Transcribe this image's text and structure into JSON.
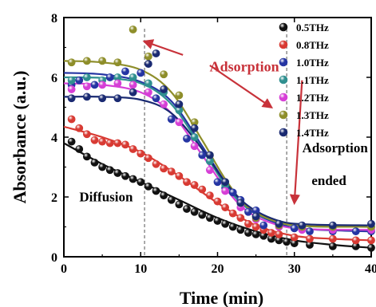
{
  "chart_data": {
    "type": "scatter",
    "title": "",
    "xlabel": "Time (min)",
    "ylabel": "Absorbance (a.u.)",
    "xlim": [
      0,
      40
    ],
    "ylim": [
      0,
      8
    ],
    "xticks": [
      0,
      10,
      20,
      30,
      40
    ],
    "yticks": [
      0,
      2,
      4,
      6,
      8
    ],
    "grid": false,
    "legend_position": "top-right",
    "fit_lines": true,
    "markers": [
      {
        "x": 10.5,
        "style": "dashed"
      },
      {
        "x": 29,
        "style": "dashed"
      }
    ],
    "annotations": [
      {
        "text": "Diffusion",
        "x": 5.5,
        "y": 1.85,
        "color": "#000000"
      },
      {
        "text": "Adsorption",
        "x": 23.5,
        "y": 6.2,
        "color": "#c8323a"
      },
      {
        "text": "Adsorption",
        "x": 35.3,
        "y": 3.5,
        "color": "#000000"
      },
      {
        "text": "ended",
        "x": 34.5,
        "y": 2.4,
        "color": "#000000"
      }
    ],
    "arrows": [
      {
        "from": [
          15.5,
          6.75
        ],
        "to": [
          10.5,
          7.2
        ],
        "color": "#c8323a"
      },
      {
        "from": [
          19,
          6.4
        ],
        "to": [
          27,
          5.0
        ],
        "color": "#c8323a"
      },
      {
        "from": [
          31,
          5.9
        ],
        "to": [
          30,
          1.8
        ],
        "color": "#c8323a"
      }
    ],
    "series": [
      {
        "name": "0.5THz",
        "color": "#111111",
        "x": [
          1,
          2,
          3,
          4,
          5,
          6,
          7,
          8,
          9,
          10,
          11,
          12,
          13,
          14,
          15,
          16,
          17,
          18,
          19,
          20,
          21,
          22,
          23,
          24,
          25,
          26,
          27,
          28,
          29,
          30,
          32,
          35,
          38,
          40
        ],
        "y": [
          3.85,
          3.6,
          3.35,
          3.15,
          3.0,
          2.9,
          2.8,
          2.7,
          2.6,
          2.5,
          2.35,
          2.2,
          2.05,
          1.9,
          1.75,
          1.6,
          1.5,
          1.4,
          1.3,
          1.2,
          1.1,
          1.0,
          0.9,
          0.8,
          0.75,
          0.7,
          0.6,
          0.55,
          0.5,
          0.45,
          0.4,
          0.35,
          0.35,
          0.3
        ],
        "fit": [
          [
            0,
            3.8
          ],
          [
            5,
            3.1
          ],
          [
            10,
            2.5
          ],
          [
            15,
            1.9
          ],
          [
            20,
            1.3
          ],
          [
            25,
            0.85
          ],
          [
            30,
            0.55
          ],
          [
            35,
            0.4
          ],
          [
            40,
            0.3
          ]
        ]
      },
      {
        "name": "0.8THz",
        "color": "#d83a33",
        "x": [
          1,
          2,
          3,
          4,
          5,
          6,
          7,
          8,
          9,
          10,
          11,
          12,
          13,
          14,
          15,
          16,
          17,
          18,
          19,
          20,
          21,
          22,
          23,
          24,
          25,
          26,
          27,
          28,
          30,
          32,
          35,
          38,
          40
        ],
        "y": [
          4.6,
          4.3,
          4.1,
          3.9,
          3.85,
          3.8,
          3.8,
          3.75,
          3.6,
          3.45,
          3.3,
          3.1,
          2.95,
          2.85,
          2.7,
          2.5,
          2.4,
          2.25,
          2.05,
          1.85,
          1.65,
          1.45,
          1.3,
          1.1,
          1.0,
          0.9,
          0.8,
          0.75,
          0.65,
          0.6,
          0.6,
          0.55,
          0.55
        ],
        "fit": [
          [
            0,
            4.35
          ],
          [
            5,
            4.0
          ],
          [
            10,
            3.5
          ],
          [
            15,
            2.7
          ],
          [
            20,
            1.8
          ],
          [
            25,
            1.05
          ],
          [
            30,
            0.7
          ],
          [
            35,
            0.6
          ],
          [
            40,
            0.55
          ]
        ]
      },
      {
        "name": "1.0THz",
        "color": "#2535a3",
        "x": [
          1,
          2,
          4,
          6,
          8,
          10,
          12,
          14,
          16,
          18,
          19,
          20,
          21,
          22,
          23,
          24,
          25,
          26,
          28,
          30,
          32,
          35,
          38,
          40
        ],
        "y": [
          5.75,
          5.9,
          5.75,
          6.0,
          6.2,
          6.15,
          5.3,
          4.6,
          3.95,
          3.4,
          3.2,
          2.5,
          2.3,
          2.15,
          1.9,
          1.5,
          1.55,
          1.05,
          1.1,
          0.95,
          0.85,
          0.85,
          0.85,
          0.85
        ],
        "fit": [
          [
            0,
            6.15
          ],
          [
            5,
            6.1
          ],
          [
            10,
            5.85
          ],
          [
            14,
            5.2
          ],
          [
            18,
            3.7
          ],
          [
            21,
            2.5
          ],
          [
            24,
            1.6
          ],
          [
            28,
            1.1
          ],
          [
            32,
            0.92
          ],
          [
            40,
            0.85
          ]
        ]
      },
      {
        "name": "1.1THz",
        "color": "#2f8f8f",
        "x": [
          1,
          3,
          5,
          7,
          9,
          11,
          13,
          15,
          17,
          19,
          21,
          23,
          25,
          28,
          31,
          35,
          40
        ],
        "y": [
          5.9,
          6.0,
          5.9,
          6.0,
          6.0,
          5.8,
          5.5,
          4.9,
          4.0,
          3.2,
          2.4,
          1.8,
          1.35,
          1.1,
          1.0,
          1.0,
          1.0
        ],
        "fit": [
          [
            0,
            6.0
          ],
          [
            5,
            5.98
          ],
          [
            10,
            5.8
          ],
          [
            14,
            5.1
          ],
          [
            18,
            3.6
          ],
          [
            21,
            2.4
          ],
          [
            24,
            1.6
          ],
          [
            28,
            1.15
          ],
          [
            32,
            1.02
          ],
          [
            40,
            1.0
          ]
        ]
      },
      {
        "name": "1.2THz",
        "color": "#d63fd6",
        "x": [
          1,
          3,
          5,
          7,
          9,
          11,
          13,
          15,
          17,
          19,
          21,
          23,
          25,
          28,
          31,
          35,
          40
        ],
        "y": [
          5.6,
          5.7,
          5.75,
          5.8,
          5.75,
          5.5,
          5.1,
          4.5,
          3.7,
          2.9,
          2.2,
          1.65,
          1.25,
          1.0,
          0.9,
          0.9,
          0.9
        ],
        "fit": [
          [
            0,
            5.8
          ],
          [
            5,
            5.75
          ],
          [
            10,
            5.5
          ],
          [
            14,
            4.8
          ],
          [
            18,
            3.4
          ],
          [
            21,
            2.3
          ],
          [
            24,
            1.5
          ],
          [
            28,
            1.05
          ],
          [
            32,
            0.92
          ],
          [
            40,
            0.9
          ]
        ]
      },
      {
        "name": "1.3THz",
        "color": "#8e8e2a",
        "x": [
          1,
          3,
          5,
          7,
          9,
          11,
          13,
          15,
          17,
          19,
          21,
          23,
          25,
          28,
          31,
          35,
          40
        ],
        "y": [
          6.5,
          6.55,
          6.55,
          6.5,
          7.6,
          6.7,
          6.1,
          5.4,
          4.5,
          3.4,
          2.5,
          1.8,
          1.3,
          1.05,
          1.0,
          1.0,
          1.0
        ],
        "fit": [
          [
            0,
            6.55
          ],
          [
            5,
            6.5
          ],
          [
            10,
            6.25
          ],
          [
            14,
            5.5
          ],
          [
            18,
            3.9
          ],
          [
            21,
            2.6
          ],
          [
            24,
            1.65
          ],
          [
            28,
            1.15
          ],
          [
            32,
            1.02
          ],
          [
            40,
            1.0
          ]
        ]
      },
      {
        "name": "1.4THz",
        "color": "#1a2a72",
        "x": [
          1,
          3,
          5,
          7,
          9,
          11,
          12,
          13,
          15,
          17,
          19,
          21,
          23,
          25,
          28,
          31,
          35,
          40
        ],
        "y": [
          5.3,
          5.35,
          5.3,
          5.3,
          5.5,
          6.45,
          6.8,
          5.6,
          5.1,
          4.3,
          3.4,
          2.5,
          1.8,
          1.35,
          1.1,
          1.05,
          1.05,
          1.1
        ],
        "fit": [
          [
            0,
            5.35
          ],
          [
            5,
            5.35
          ],
          [
            10,
            5.25
          ],
          [
            14,
            4.8
          ],
          [
            18,
            3.6
          ],
          [
            21,
            2.5
          ],
          [
            24,
            1.7
          ],
          [
            28,
            1.2
          ],
          [
            32,
            1.08
          ],
          [
            40,
            1.05
          ]
        ]
      }
    ]
  }
}
